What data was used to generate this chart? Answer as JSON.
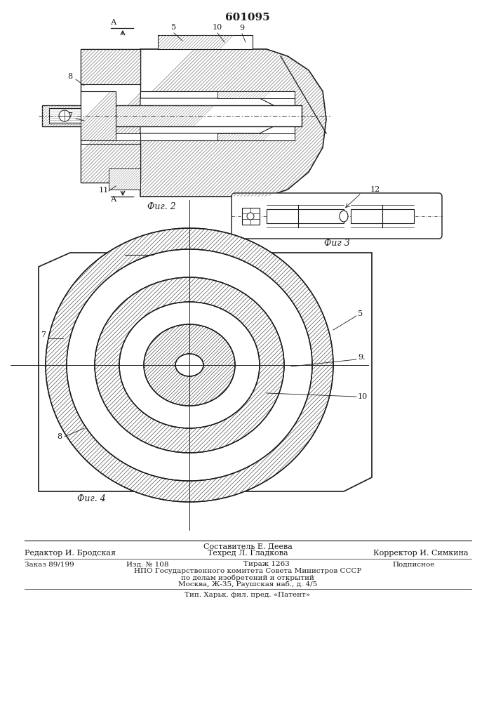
{
  "title": "601095",
  "fig2_label": "Фиг. 2",
  "fig3_label": "Фиг 3",
  "fig4_label": "Фиг. 4",
  "aa_label": "А – А",
  "footer": {
    "line1": "Составитель Е. Деева",
    "line2_left": "Редактор И. Бродская",
    "line2_mid": "Техред Л. Гладкова",
    "line2_right": "Корректор И. Симкина",
    "line3_col1": "Заказ 89/199",
    "line3_col2": "Изд. № 108",
    "line3_col3": "Тираж 1263",
    "line3_col4": "Подписное",
    "line4": "НПО Государственного комитета Совета Министров СССР",
    "line5": "по делам изобретений и открытий",
    "line6": "Москва, Ж-35, Раушская наб., д. 4/5",
    "line7": "Тип. Харьк. фил. пред. «Патент»"
  },
  "bg_color": "#ffffff",
  "dc": "#1a1a1a"
}
